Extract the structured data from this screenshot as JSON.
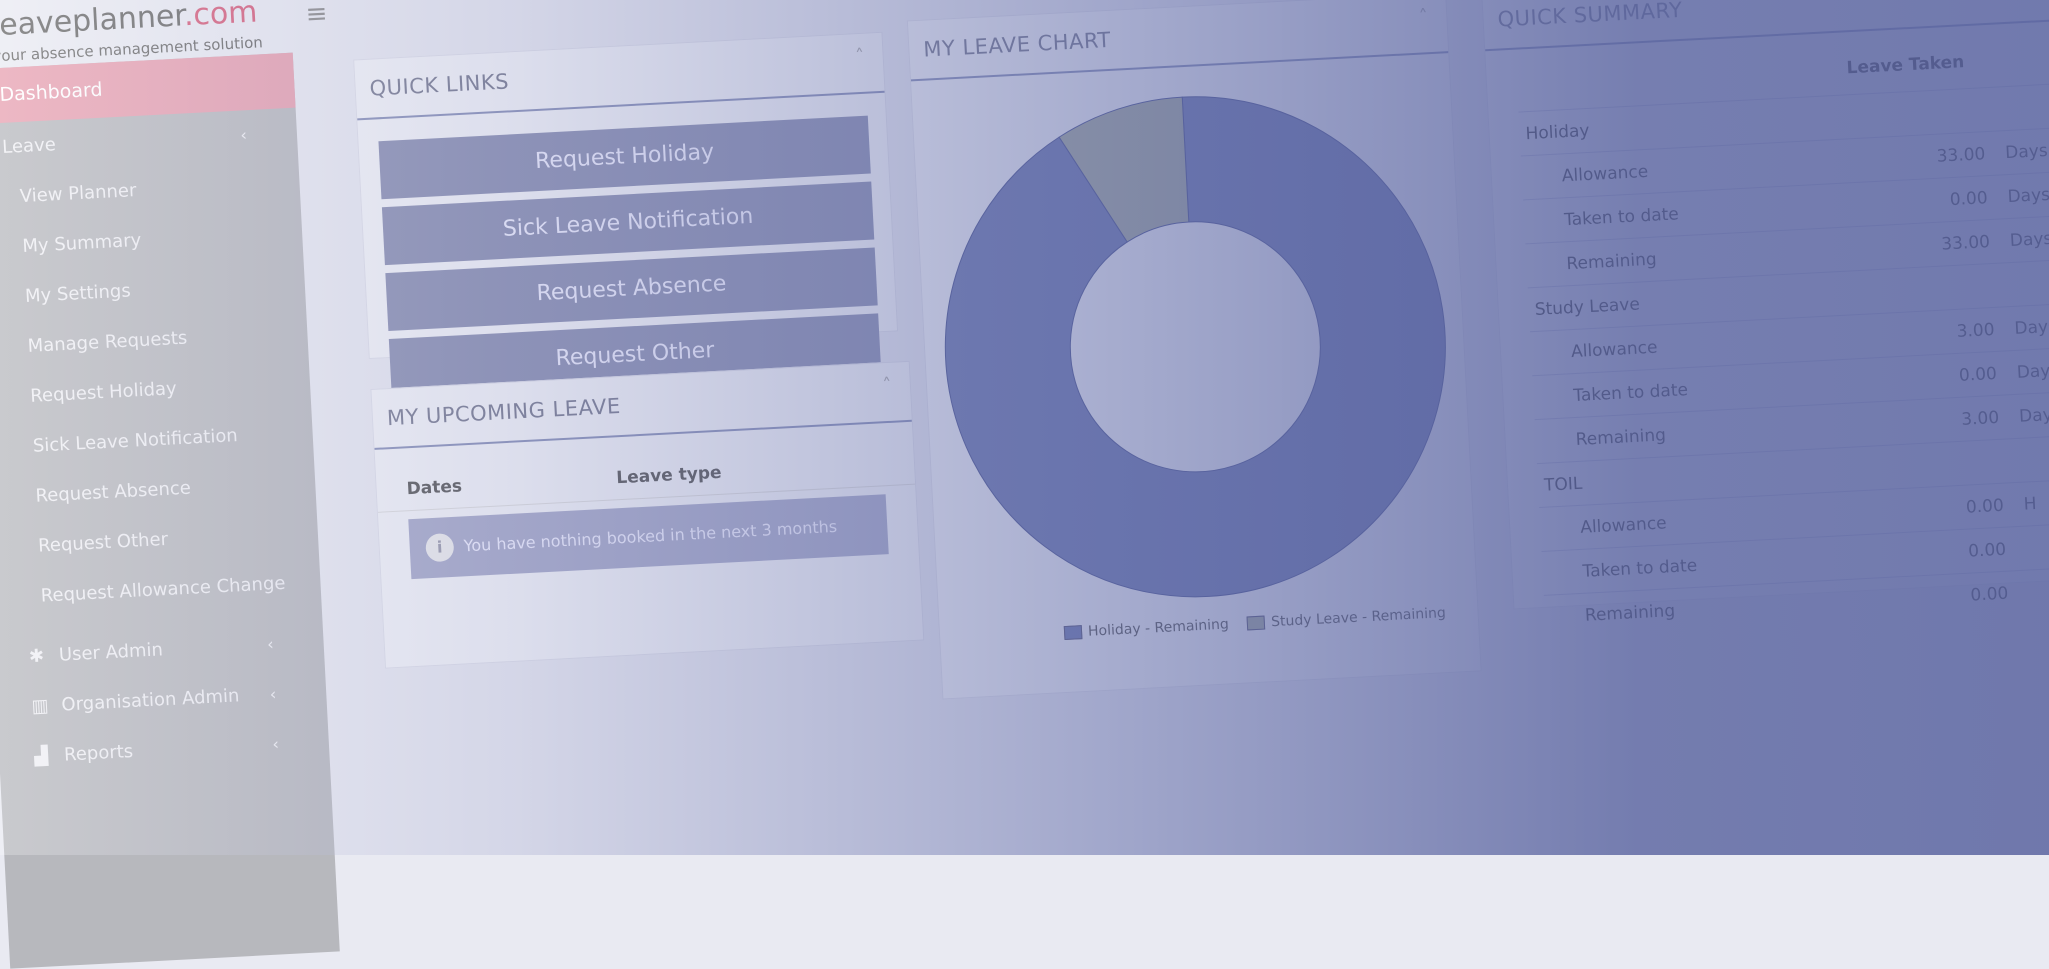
{
  "brand": {
    "logo_text": "leaveplanner",
    "logo_tld": ".com",
    "tagline": "your absence management solution"
  },
  "sidebar": {
    "items": [
      {
        "label": "Dashboard"
      },
      {
        "label": "Leave"
      },
      {
        "label": "View Planner"
      },
      {
        "label": "My Summary"
      },
      {
        "label": "My Settings"
      },
      {
        "label": "Manage Requests"
      },
      {
        "label": "Request Holiday"
      },
      {
        "label": "Sick Leave Notification"
      },
      {
        "label": "Request Absence"
      },
      {
        "label": "Request Other"
      },
      {
        "label": "Request Allowance Change"
      },
      {
        "label": "User Admin"
      },
      {
        "label": "Organisation Admin"
      },
      {
        "label": "Reports"
      }
    ]
  },
  "quick_links": {
    "title": "QUICK LINKS",
    "buttons": [
      "Request Holiday",
      "Sick Leave Notification",
      "Request Absence",
      "Request Other"
    ]
  },
  "upcoming": {
    "title": "MY UPCOMING LEAVE",
    "columns": [
      "Dates",
      "Leave type"
    ],
    "empty_message": "You have nothing booked in the next 3 months"
  },
  "chart_panel": {
    "title": "MY LEAVE CHART"
  },
  "chart_data": {
    "type": "pie",
    "donut": true,
    "categories": [
      "Holiday - Remaining",
      "Study Leave - Remaining"
    ],
    "values": [
      33,
      3
    ],
    "colors": [
      "#6e7ab0",
      "#a5aca0"
    ],
    "legend": "bottom"
  },
  "summary": {
    "title": "QUICK SUMMARY",
    "column": "Leave Taken",
    "rows": [
      {
        "label": "Holiday",
        "level": 0,
        "value": "",
        "unit": ""
      },
      {
        "label": "Allowance",
        "level": 1,
        "value": "33.00",
        "unit": "Days"
      },
      {
        "label": "Taken to date",
        "level": 1,
        "value": "0.00",
        "unit": "Days"
      },
      {
        "label": "Remaining",
        "level": 1,
        "value": "33.00",
        "unit": "Days"
      },
      {
        "label": "Study Leave",
        "level": 0,
        "value": "",
        "unit": ""
      },
      {
        "label": "Allowance",
        "level": 1,
        "value": "3.00",
        "unit": "Days"
      },
      {
        "label": "Taken to date",
        "level": 1,
        "value": "0.00",
        "unit": "Days"
      },
      {
        "label": "Remaining",
        "level": 1,
        "value": "3.00",
        "unit": "Days"
      },
      {
        "label": "TOIL",
        "level": 0,
        "value": "",
        "unit": ""
      },
      {
        "label": "Allowance",
        "level": 1,
        "value": "0.00",
        "unit": "H"
      },
      {
        "label": "Taken to date",
        "level": 1,
        "value": "0.00",
        "unit": ""
      },
      {
        "label": "Remaining",
        "level": 1,
        "value": "0.00",
        "unit": ""
      }
    ]
  }
}
